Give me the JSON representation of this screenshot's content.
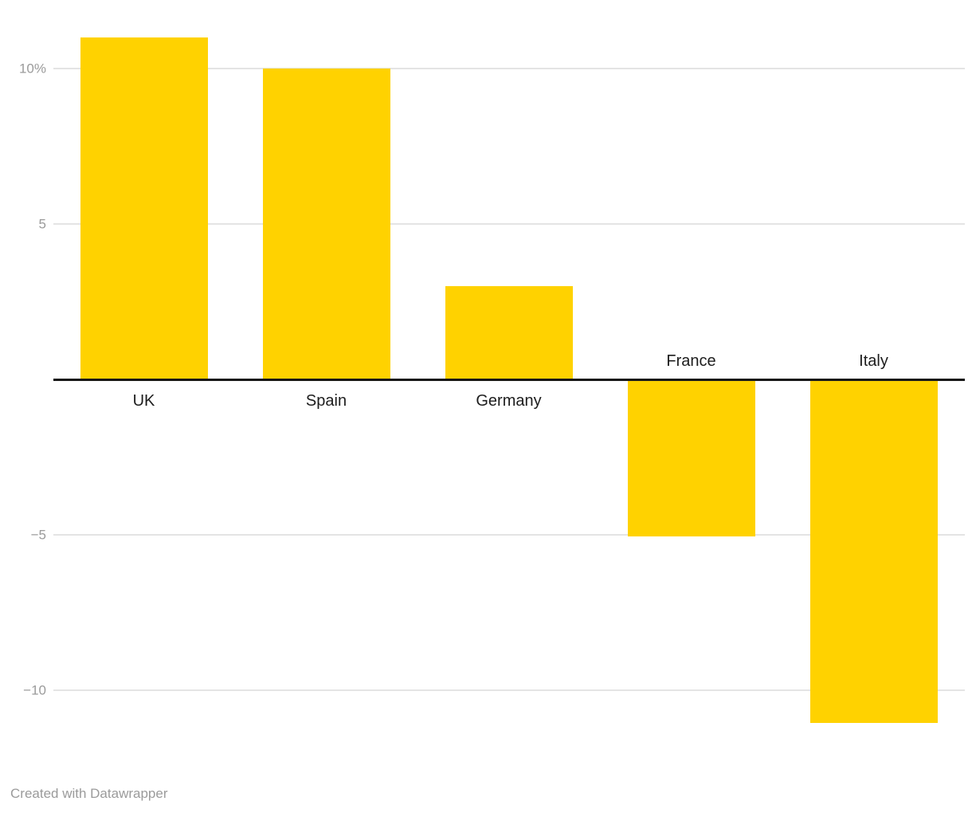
{
  "chart_data": {
    "type": "bar",
    "categories": [
      "UK",
      "Spain",
      "Germany",
      "France",
      "Italy"
    ],
    "values": [
      11,
      10,
      3,
      -5,
      -11
    ],
    "title": "",
    "xlabel": "",
    "ylabel": "",
    "ylim": [
      -12,
      12
    ],
    "baseline": 0,
    "grid": true,
    "legend": "none",
    "yticks": [
      {
        "value": 10,
        "label": "10%"
      },
      {
        "value": 5,
        "label": "5"
      },
      {
        "value": -5,
        "label": "−5"
      },
      {
        "value": -10,
        "label": "−10"
      }
    ]
  },
  "colors": {
    "bar": "#ffd200",
    "grid": "#e4e4e4",
    "baseline": "#161616",
    "tick_label": "#9b9b9b",
    "category_label": "#1d1d1d",
    "footer_text": "#9b9b9b",
    "background": "#ffffff"
  },
  "footer": {
    "credit": "Created with Datawrapper"
  }
}
